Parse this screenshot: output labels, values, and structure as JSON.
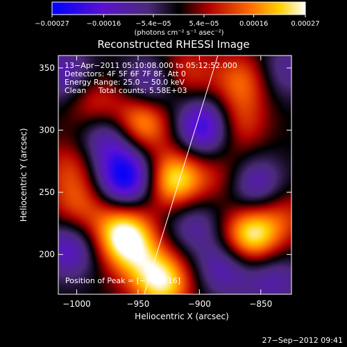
{
  "chart_data": {
    "type": "heatmap",
    "title": "Reconstructed RHESSI Image",
    "xlabel": "Heliocentric X (arcsec)",
    "ylabel": "Heliocentric Y (arcsec)",
    "xlim": [
      -1015,
      -825
    ],
    "ylim": [
      168,
      360
    ],
    "x_ticks": [
      -1000,
      -950,
      -900,
      -850
    ],
    "x_tick_labels": [
      "−1000",
      "−950",
      "−900",
      "−850"
    ],
    "y_ticks": [
      200,
      250,
      300,
      350
    ],
    "y_tick_labels": [
      "200",
      "250",
      "300",
      "350"
    ],
    "colorbar": {
      "range": [
        -0.00027,
        0.00027
      ],
      "ticks": [
        -0.00027,
        -0.00016,
        -5.4e-05,
        5.4e-05,
        0.00016,
        0.00027
      ],
      "tick_labels": [
        "−0.00027",
        "−0.00016",
        "−5.4e−05",
        "5.4e−05",
        "0.00016",
        "0.00027"
      ],
      "label": "(photons cm⁻² s⁻¹ asec⁻²)",
      "colormap": "rhessi-blue-purple-black-red-yellow-white"
    },
    "annotations": [
      "13−Apr−2011 05:10:08.000 to 05:12:52.000",
      "Detectors: 4F 5F 6F 7F 8F, Att 0",
      "Energy Range: 25.0 − 50.0 keV",
      "Clean     Total counts: 5.58E+03"
    ],
    "peak_label": "Position of Peak = [−962,216]",
    "limb_line": {
      "x": [
        -945,
        -885
      ],
      "y": [
        168,
        360
      ]
    },
    "sources": [
      {
        "x": -962,
        "y": 216,
        "value": 0.00027
      },
      {
        "x": -920,
        "y": 260,
        "value": 0.00025
      },
      {
        "x": -858,
        "y": 215,
        "value": 0.00026
      },
      {
        "x": -947,
        "y": 307,
        "value": 0.00022
      },
      {
        "x": -985,
        "y": 320,
        "value": 0.00012
      },
      {
        "x": -1004,
        "y": 270,
        "value": 0.0001
      },
      {
        "x": -998,
        "y": 238,
        "value": 0.00012
      },
      {
        "x": -930,
        "y": 178,
        "value": 0.00024
      },
      {
        "x": -870,
        "y": 305,
        "value": 0.00013
      },
      {
        "x": -865,
        "y": 340,
        "value": 0.00014
      },
      {
        "x": -912,
        "y": 345,
        "value": 0.00011
      },
      {
        "x": -880,
        "y": 262,
        "value": 8e-05
      },
      {
        "x": -950,
        "y": 196,
        "value": 0.0001
      },
      {
        "x": -832,
        "y": 232,
        "value": 9e-05
      },
      {
        "x": -960,
        "y": 262,
        "value": -0.00027
      },
      {
        "x": -895,
        "y": 303,
        "value": -0.00024
      },
      {
        "x": -975,
        "y": 295,
        "value": -0.00016
      },
      {
        "x": -1006,
        "y": 205,
        "value": -0.00016
      },
      {
        "x": -940,
        "y": 335,
        "value": -0.00015
      },
      {
        "x": -855,
        "y": 255,
        "value": -0.00016
      },
      {
        "x": -880,
        "y": 190,
        "value": -0.00014
      },
      {
        "x": -1010,
        "y": 345,
        "value": -0.00013
      },
      {
        "x": -840,
        "y": 180,
        "value": -0.00012
      },
      {
        "x": -905,
        "y": 225,
        "value": -0.00011
      },
      {
        "x": -832,
        "y": 348,
        "value": -0.0001
      }
    ]
  },
  "footer": {
    "timestamp": "27−Sep−2012 09:41"
  }
}
